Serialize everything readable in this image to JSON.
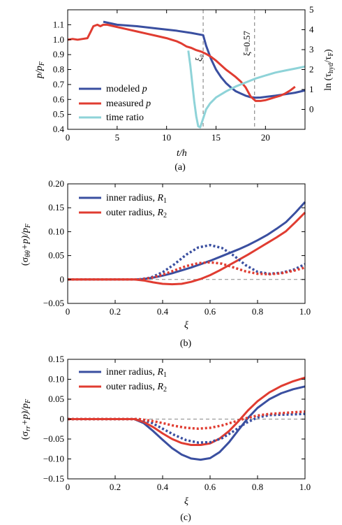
{
  "chart_data": [
    {
      "type": "line",
      "panel": "a",
      "caption": "(a)",
      "xlabel": "t/h",
      "ylabel": "p/p_F",
      "ylabel_main": "p/p",
      "ylabel_sub": "F",
      "y2label": "ln (τ_hyd/τ_F)",
      "y2label_main": "ln (τ",
      "y2label_sub1": "hyd",
      "y2label_mid": "/τ",
      "y2label_sub2": "F",
      "y2label_end": ")",
      "xlim": [
        0,
        24
      ],
      "ylim": [
        0.4,
        1.2
      ],
      "y2lim": [
        -1,
        5
      ],
      "xticks": [
        0,
        5,
        10,
        15,
        20
      ],
      "yticks": [
        0.4,
        0.5,
        0.6,
        0.7,
        0.8,
        0.9,
        1.0,
        1.1
      ],
      "y2ticks": [
        0,
        1,
        2,
        3,
        4,
        5
      ],
      "xtick_labels": [
        "0",
        "5",
        "10",
        "15",
        "20"
      ],
      "ytick_labels": [
        "0.4",
        "0.5",
        "0.6",
        "0.7",
        "0.8",
        "0.9",
        "1.0",
        "1.1"
      ],
      "y2tick_labels": [
        "0",
        "1",
        "2",
        "3",
        "4",
        "5"
      ],
      "vlines": [
        13.7,
        18.9
      ],
      "annotations": [
        {
          "text": "ξ₀",
          "x": 13.3,
          "y": 0.83
        },
        {
          "text": "ξ=0.57",
          "x": 18.5,
          "y": 0.9
        }
      ],
      "legend_position": "lower-left",
      "series": [
        {
          "name": "modeled p",
          "label_main": "modeled ",
          "label_var": "p",
          "color": "#3a4fa0",
          "axis": "left",
          "dash": "solid",
          "x": [
            3.6,
            5,
            7,
            9,
            11,
            12.5,
            13.7,
            14.0,
            14.5,
            15.0,
            15.5,
            16.0,
            16.5,
            17.0,
            17.5,
            18.0,
            18.5,
            19.0,
            19.5,
            20.0,
            21.0,
            22.0,
            23.0,
            24.0
          ],
          "y": [
            1.12,
            1.1,
            1.09,
            1.075,
            1.06,
            1.045,
            1.03,
            0.96,
            0.87,
            0.8,
            0.75,
            0.71,
            0.68,
            0.655,
            0.64,
            0.625,
            0.615,
            0.612,
            0.613,
            0.617,
            0.625,
            0.635,
            0.645,
            0.66
          ]
        },
        {
          "name": "measured p",
          "label_main": "measured ",
          "label_var": "p",
          "color": "#e03c31",
          "axis": "left",
          "dash": "solid",
          "x": [
            0,
            0.5,
            1,
            1.5,
            2,
            2.3,
            2.6,
            3.0,
            3.3,
            3.6,
            4.0,
            5,
            6,
            7,
            8,
            9,
            10,
            10.5,
            11,
            11.5,
            12,
            12.5,
            13,
            13.5,
            14,
            14.5,
            15,
            15.5,
            16,
            16.5,
            17,
            17.5,
            18,
            18.5,
            19,
            19.5,
            20,
            20.5,
            21,
            21.5,
            22,
            22.5,
            23
          ],
          "y": [
            1.0,
            1.005,
            1.0,
            1.005,
            1.01,
            1.05,
            1.09,
            1.1,
            1.09,
            1.1,
            1.1,
            1.085,
            1.07,
            1.055,
            1.04,
            1.025,
            1.01,
            1.0,
            0.99,
            0.975,
            0.955,
            0.945,
            0.93,
            0.92,
            0.905,
            0.885,
            0.86,
            0.83,
            0.8,
            0.775,
            0.75,
            0.72,
            0.68,
            0.62,
            0.59,
            0.59,
            0.595,
            0.605,
            0.615,
            0.625,
            0.64,
            0.66,
            0.685
          ]
        },
        {
          "name": "time ratio",
          "label_main": "time ratio",
          "label_var": "",
          "color": "#8ed3d8",
          "axis": "right",
          "dash": "solid",
          "x": [
            12.2,
            12.4,
            12.6,
            12.8,
            13.0,
            13.2,
            13.4,
            13.6,
            13.8,
            14.0,
            14.4,
            15.0,
            16.0,
            17.0,
            18.0,
            19.0,
            20.0,
            21.0,
            22.0,
            23.0,
            24.0
          ],
          "y": [
            2.95,
            2.2,
            1.3,
            0.4,
            -0.35,
            -0.85,
            -0.9,
            -0.6,
            -0.3,
            0.0,
            0.3,
            0.6,
            0.9,
            1.15,
            1.35,
            1.55,
            1.7,
            1.85,
            1.95,
            2.05,
            2.15
          ]
        }
      ]
    },
    {
      "type": "line",
      "panel": "b",
      "caption": "(b)",
      "xlabel": "ξ",
      "ylabel": "(σ_θθ+p)/p_F",
      "ylabel_a": "(σ",
      "ylabel_sub1": "θθ",
      "ylabel_b": "+p)/p",
      "ylabel_sub2": "F",
      "xlim": [
        0,
        1
      ],
      "ylim": [
        -0.05,
        0.2
      ],
      "xticks": [
        0,
        0.2,
        0.4,
        0.6,
        0.8,
        1.0
      ],
      "yticks": [
        -0.05,
        0,
        0.05,
        0.1,
        0.15,
        0.2
      ],
      "xtick_labels": [
        "0",
        "0.2",
        "0.4",
        "0.6",
        "0.8",
        "1.0"
      ],
      "ytick_labels": [
        "−0.05",
        "0",
        "0.05",
        "0.10",
        "0.15",
        "0.20"
      ],
      "hline": 0,
      "legend_position": "upper-left",
      "series": [
        {
          "name": "inner radius, R1",
          "label_main": "inner radius, ",
          "label_var": "R",
          "label_sub": "1",
          "color": "#3a4fa0",
          "dash": "solid",
          "x": [
            0,
            0.28,
            0.32,
            0.36,
            0.4,
            0.44,
            0.48,
            0.52,
            0.56,
            0.6,
            0.64,
            0.68,
            0.72,
            0.76,
            0.8,
            0.84,
            0.88,
            0.92,
            0.96,
            1.0
          ],
          "y": [
            0,
            0,
            0.001,
            0.004,
            0.008,
            0.013,
            0.019,
            0.025,
            0.032,
            0.039,
            0.047,
            0.055,
            0.063,
            0.072,
            0.082,
            0.093,
            0.106,
            0.12,
            0.14,
            0.162
          ]
        },
        {
          "name": "outer radius, R2",
          "label_main": "outer radius, ",
          "label_var": "R",
          "label_sub": "2",
          "color": "#e03c31",
          "dash": "solid",
          "x": [
            0,
            0.28,
            0.32,
            0.36,
            0.4,
            0.44,
            0.48,
            0.52,
            0.56,
            0.6,
            0.64,
            0.68,
            0.72,
            0.76,
            0.8,
            0.84,
            0.88,
            0.92,
            0.96,
            1.0
          ],
          "y": [
            0,
            0,
            -0.002,
            -0.006,
            -0.009,
            -0.01,
            -0.009,
            -0.005,
            0.001,
            0.009,
            0.019,
            0.03,
            0.041,
            0.052,
            0.064,
            0.076,
            0.088,
            0.101,
            0.12,
            0.14
          ]
        },
        {
          "name": "inner radius, R1 (dotted)",
          "color": "#3a4fa0",
          "dash": "dot",
          "x": [
            0,
            0.3,
            0.35,
            0.4,
            0.45,
            0.5,
            0.55,
            0.6,
            0.65,
            0.7,
            0.75,
            0.8,
            0.85,
            0.9,
            0.95,
            1.0
          ],
          "y": [
            0,
            0,
            0.004,
            0.015,
            0.032,
            0.052,
            0.067,
            0.072,
            0.066,
            0.05,
            0.03,
            0.016,
            0.012,
            0.014,
            0.02,
            0.032
          ]
        },
        {
          "name": "outer radius, R2 (dotted)",
          "color": "#e03c31",
          "dash": "dot",
          "x": [
            0,
            0.3,
            0.35,
            0.4,
            0.45,
            0.5,
            0.55,
            0.6,
            0.65,
            0.7,
            0.75,
            0.8,
            0.85,
            0.9,
            0.95,
            1.0
          ],
          "y": [
            0,
            0,
            0.003,
            0.01,
            0.019,
            0.028,
            0.034,
            0.036,
            0.033,
            0.025,
            0.017,
            0.012,
            0.011,
            0.013,
            0.018,
            0.025
          ]
        }
      ]
    },
    {
      "type": "line",
      "panel": "c",
      "caption": "(c)",
      "xlabel": "ξ",
      "ylabel": "(σ_rr+p)/p_F",
      "ylabel_a": "(σ",
      "ylabel_sub1": "rr",
      "ylabel_b": "+p)/p",
      "ylabel_sub2": "F",
      "xlim": [
        0,
        1
      ],
      "ylim": [
        -0.15,
        0.15
      ],
      "xticks": [
        0,
        0.2,
        0.4,
        0.6,
        0.8,
        1.0
      ],
      "yticks": [
        -0.15,
        -0.1,
        -0.05,
        0,
        0.05,
        0.1,
        0.15
      ],
      "xtick_labels": [
        "0",
        "0.2",
        "0.4",
        "0.6",
        "0.8",
        "1.0"
      ],
      "ytick_labels": [
        "−0.15",
        "−0.10",
        "−0.05",
        "0",
        "0.05",
        "0.10",
        "0.15"
      ],
      "hline": 0,
      "legend_position": "upper-left",
      "series": [
        {
          "name": "inner radius, R1",
          "label_main": "inner radius, ",
          "label_var": "R",
          "label_sub": "1",
          "color": "#3a4fa0",
          "dash": "solid",
          "x": [
            0,
            0.28,
            0.32,
            0.36,
            0.4,
            0.44,
            0.48,
            0.52,
            0.56,
            0.6,
            0.64,
            0.68,
            0.72,
            0.76,
            0.8,
            0.85,
            0.9,
            0.95,
            1.0
          ],
          "y": [
            0,
            0,
            -0.01,
            -0.03,
            -0.052,
            -0.073,
            -0.089,
            -0.099,
            -0.102,
            -0.098,
            -0.083,
            -0.058,
            -0.027,
            0.003,
            0.028,
            0.05,
            0.065,
            0.075,
            0.082
          ]
        },
        {
          "name": "outer radius, R2",
          "label_main": "outer radius, ",
          "label_var": "R",
          "label_sub": "2",
          "color": "#e03c31",
          "dash": "solid",
          "x": [
            0,
            0.28,
            0.32,
            0.36,
            0.4,
            0.44,
            0.48,
            0.52,
            0.56,
            0.6,
            0.64,
            0.68,
            0.72,
            0.76,
            0.8,
            0.85,
            0.9,
            0.95,
            1.0
          ],
          "y": [
            0,
            0,
            -0.007,
            -0.02,
            -0.036,
            -0.05,
            -0.06,
            -0.065,
            -0.065,
            -0.061,
            -0.049,
            -0.03,
            -0.005,
            0.022,
            0.045,
            0.067,
            0.083,
            0.095,
            0.104
          ]
        },
        {
          "name": "inner radius, R1 (dotted)",
          "color": "#3a4fa0",
          "dash": "dot",
          "x": [
            0,
            0.3,
            0.35,
            0.4,
            0.45,
            0.5,
            0.55,
            0.6,
            0.65,
            0.7,
            0.75,
            0.8,
            0.85,
            0.9,
            0.95,
            1.0
          ],
          "y": [
            0,
            0,
            -0.008,
            -0.024,
            -0.04,
            -0.053,
            -0.059,
            -0.058,
            -0.048,
            -0.03,
            -0.01,
            0.004,
            0.01,
            0.011,
            0.012,
            0.013
          ]
        },
        {
          "name": "outer radius, R2 (dotted)",
          "color": "#e03c31",
          "dash": "dot",
          "x": [
            0,
            0.3,
            0.35,
            0.4,
            0.45,
            0.5,
            0.55,
            0.6,
            0.65,
            0.7,
            0.75,
            0.8,
            0.85,
            0.9,
            0.95,
            1.0
          ],
          "y": [
            0,
            0,
            -0.004,
            -0.01,
            -0.017,
            -0.022,
            -0.024,
            -0.022,
            -0.016,
            -0.007,
            0.002,
            0.009,
            0.013,
            0.015,
            0.017,
            0.019
          ]
        }
      ]
    }
  ]
}
